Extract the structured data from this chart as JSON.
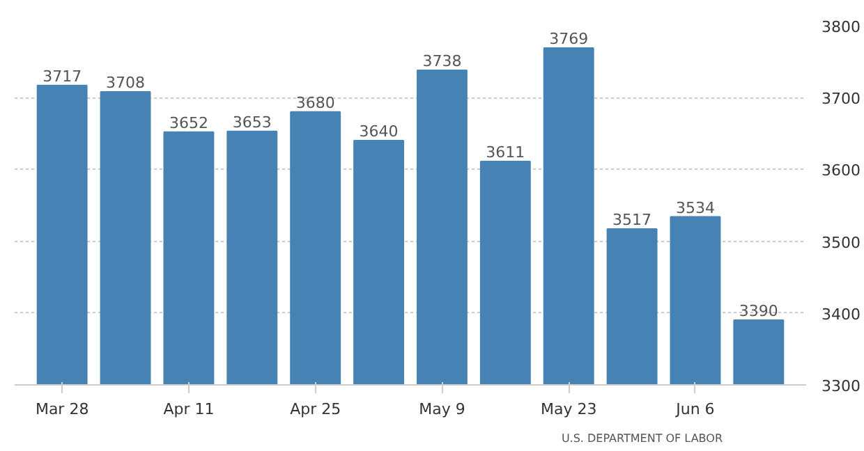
{
  "chart_data": {
    "type": "bar",
    "categories": [
      "Mar 28",
      null,
      "Apr 11",
      null,
      "Apr 25",
      null,
      "May 9",
      null,
      "May 23",
      null,
      "Jun 6",
      null
    ],
    "values": [
      3717,
      3708,
      3652,
      3653,
      3680,
      3640,
      3738,
      3611,
      3769,
      3517,
      3534,
      3390
    ],
    "color": "#4682b4",
    "ylim": [
      3300,
      3800
    ],
    "yticks": [
      3300,
      3400,
      3500,
      3600,
      3700,
      3800
    ],
    "grid": "y",
    "data_labels": true,
    "annotations": [
      "U.S. DEPARTMENT OF LABOR"
    ]
  }
}
